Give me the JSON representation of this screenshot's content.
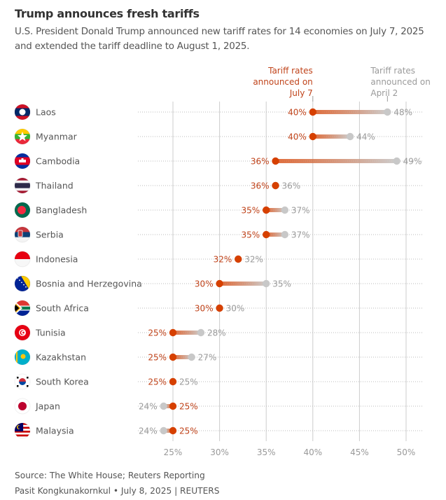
{
  "header": {
    "title": "Trump announces fresh tariffs",
    "subtitle": "U.S. President Donald Trump announced new tariff rates for 14 economies on July 7, 2025 and extended the tariff deadline to August 1, 2025."
  },
  "footer": {
    "source": "Source: The White House; Reuters Reporting",
    "credit": "Pasit Kongkunakornkul • July 8, 2025 | REUTERS"
  },
  "colors": {
    "new_rate": "#d64000",
    "old_rate": "#c8c8c8",
    "new_label": "#c0431a",
    "old_label": "#9a9a9a",
    "grid": "#cccccc"
  },
  "chart_data": {
    "type": "dumbbell",
    "title": "Trump announces fresh tariffs",
    "series": [
      {
        "name": "Tariff rates announced on July 7",
        "key": "july7"
      },
      {
        "name": "Tariff rates announced on April 2",
        "key": "april2"
      }
    ],
    "legend_labels": {
      "july7": [
        "Tariff rates",
        "announced on",
        "July 7"
      ],
      "april2": [
        "Tariff rates",
        "announced on",
        "April 2"
      ]
    },
    "x_ticks": [
      25,
      30,
      35,
      40,
      45,
      50
    ],
    "x_tick_labels": [
      "25%",
      "30%",
      "35%",
      "40%",
      "45%",
      "50%"
    ],
    "xlim": [
      25,
      50
    ],
    "grid": true,
    "rows": [
      {
        "country": "Laos",
        "flag": "laos-flag",
        "july7": 40,
        "april2": 48
      },
      {
        "country": "Myanmar",
        "flag": "myanmar-flag",
        "july7": 40,
        "april2": 44
      },
      {
        "country": "Cambodia",
        "flag": "cambodia-flag",
        "july7": 36,
        "april2": 49
      },
      {
        "country": "Thailand",
        "flag": "thailand-flag",
        "july7": 36,
        "april2": 36
      },
      {
        "country": "Bangladesh",
        "flag": "bangladesh-flag",
        "july7": 35,
        "april2": 37
      },
      {
        "country": "Serbia",
        "flag": "serbia-flag",
        "july7": 35,
        "april2": 37
      },
      {
        "country": "Indonesia",
        "flag": "indonesia-flag",
        "july7": 32,
        "april2": 32
      },
      {
        "country": "Bosnia and Herzegovina",
        "flag": "bosnia-flag",
        "july7": 30,
        "april2": 35
      },
      {
        "country": "South Africa",
        "flag": "south-africa-flag",
        "july7": 30,
        "april2": 30
      },
      {
        "country": "Tunisia",
        "flag": "tunisia-flag",
        "july7": 25,
        "april2": 28
      },
      {
        "country": "Kazakhstan",
        "flag": "kazakhstan-flag",
        "july7": 25,
        "april2": 27
      },
      {
        "country": "South Korea",
        "flag": "south-korea-flag",
        "july7": 25,
        "april2": 25
      },
      {
        "country": "Japan",
        "flag": "japan-flag",
        "july7": 25,
        "april2": 24
      },
      {
        "country": "Malaysia",
        "flag": "malaysia-flag",
        "july7": 25,
        "april2": 24
      }
    ]
  }
}
